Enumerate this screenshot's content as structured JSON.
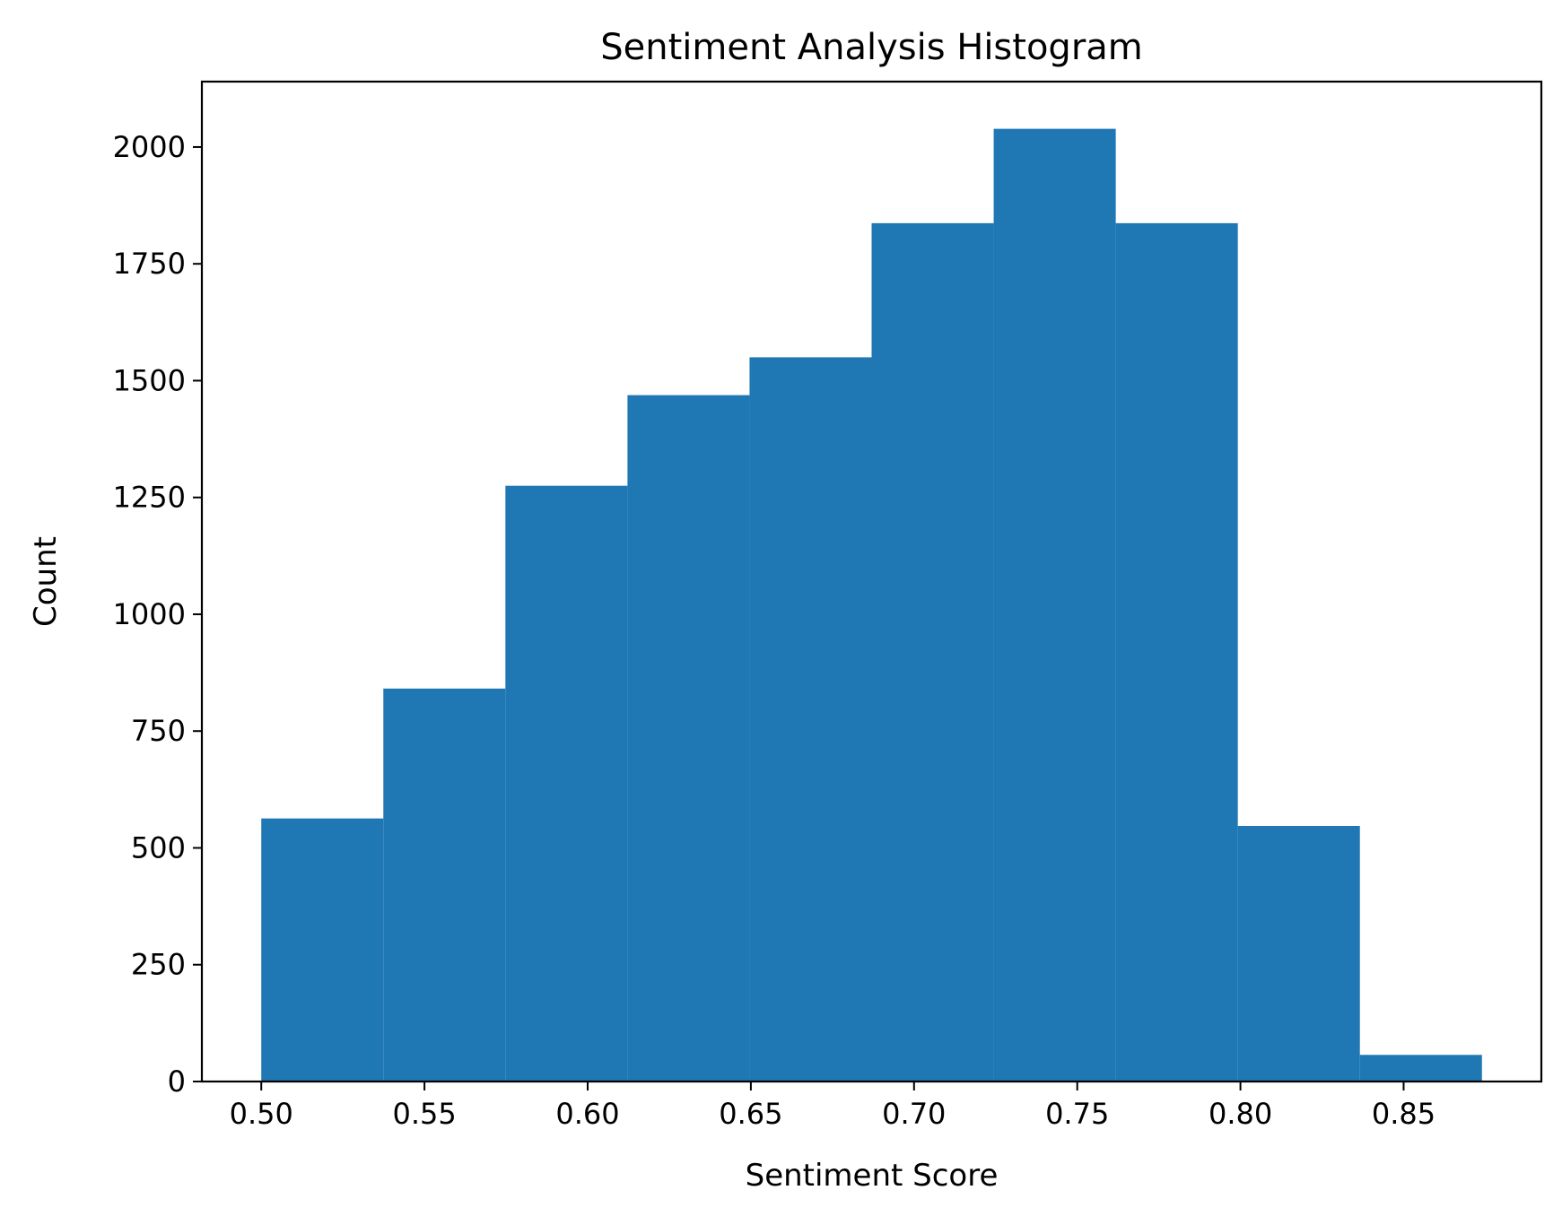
{
  "chart_data": {
    "type": "bar",
    "title": "Sentiment Analysis Histogram",
    "xlabel": "Sentiment Score",
    "ylabel": "Count",
    "bin_edges": [
      0.5,
      0.5374,
      0.5748,
      0.6122,
      0.6496,
      0.687,
      0.7244,
      0.7618,
      0.7992,
      0.8366,
      0.874
    ],
    "values": [
      563,
      841,
      1275,
      1469,
      1550,
      1837,
      2039,
      1837,
      547,
      57
    ],
    "xlim": [
      0.4818,
      0.8922
    ],
    "ylim": [
      0,
      2140
    ],
    "xticks": [
      0.5,
      0.55,
      0.6,
      0.65,
      0.7,
      0.75,
      0.8,
      0.85
    ],
    "xtick_labels": [
      "0.50",
      "0.55",
      "0.60",
      "0.65",
      "0.70",
      "0.75",
      "0.80",
      "0.85"
    ],
    "yticks": [
      0,
      250,
      500,
      750,
      1000,
      1250,
      1500,
      1750,
      2000
    ],
    "ytick_labels": [
      "0",
      "250",
      "500",
      "750",
      "1000",
      "1250",
      "1500",
      "1750",
      "2000"
    ],
    "grid": false,
    "bar_color": "#1f77b4"
  }
}
